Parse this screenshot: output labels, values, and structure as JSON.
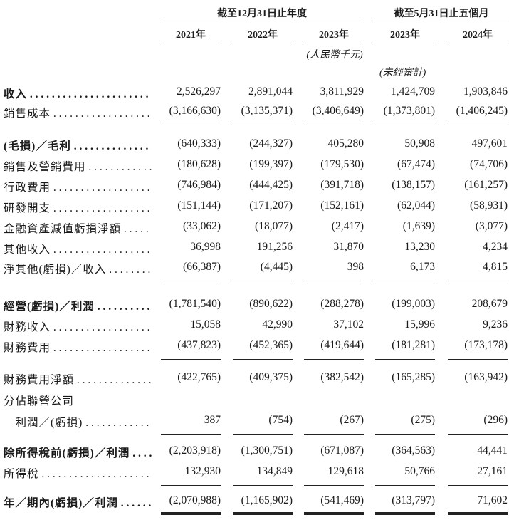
{
  "header": {
    "group1": "截至12月31日止年度",
    "group2": "截至5月31日止五個月",
    "years": [
      "2021年",
      "2022年",
      "2023年",
      "2023年",
      "2024年"
    ],
    "currency_note": "(人民幣千元)",
    "unaudited_note": "(未經審計)"
  },
  "rows": [
    {
      "label": "收入",
      "bold": true,
      "values": [
        "2,526,297",
        "2,891,044",
        "3,811,929",
        "1,424,709",
        "1,903,846"
      ]
    },
    {
      "label": "銷售成本",
      "values": [
        "(3,166,630)",
        "(3,135,371)",
        "(3,406,649)",
        "(1,373,801)",
        "(1,406,245)"
      ],
      "rule": "single"
    },
    {
      "label": "(毛損)／毛利",
      "bold": true,
      "values": [
        "(640,333)",
        "(244,327)",
        "405,280",
        "50,908",
        "497,601"
      ]
    },
    {
      "label": "銷售及營銷費用",
      "values": [
        "(180,628)",
        "(199,397)",
        "(179,530)",
        "(67,474)",
        "(74,706)"
      ]
    },
    {
      "label": "行政費用",
      "values": [
        "(746,984)",
        "(444,425)",
        "(391,718)",
        "(138,157)",
        "(161,257)"
      ]
    },
    {
      "label": "研發開支",
      "values": [
        "(151,144)",
        "(171,207)",
        "(152,161)",
        "(62,044)",
        "(58,931)"
      ]
    },
    {
      "label": "金融資產減值虧損淨額",
      "values": [
        "(33,062)",
        "(18,077)",
        "(2,417)",
        "(1,639)",
        "(3,077)"
      ]
    },
    {
      "label": "其他收入",
      "values": [
        "36,998",
        "191,256",
        "31,870",
        "13,230",
        "4,234"
      ]
    },
    {
      "label": "淨其他(虧損)／收入",
      "values": [
        "(66,387)",
        "(4,445)",
        "398",
        "6,173",
        "4,815"
      ],
      "rule": "single"
    },
    {
      "label": "經營(虧損)／利潤",
      "bold": true,
      "values": [
        "(1,781,540)",
        "(890,622)",
        "(288,278)",
        "(199,003)",
        "208,679"
      ]
    },
    {
      "label": "財務收入",
      "values": [
        "15,058",
        "42,990",
        "37,102",
        "15,996",
        "9,236"
      ]
    },
    {
      "label": "財務費用",
      "values": [
        "(437,823)",
        "(452,365)",
        "(419,644)",
        "(181,281)",
        "(173,178)"
      ],
      "rule": "single"
    },
    {
      "label": "財務費用淨額",
      "values": [
        "(422,765)",
        "(409,375)",
        "(382,542)",
        "(165,285)",
        "(163,942)"
      ]
    },
    {
      "label": "分佔聯營公司",
      "noleader": true,
      "values": []
    },
    {
      "label": "　利潤／(虧損)",
      "values": [
        "387",
        "(754)",
        "(267)",
        "(275)",
        "(296)"
      ],
      "rule": "single"
    },
    {
      "label": "除所得稅前(虧損)／利潤",
      "bold": true,
      "values": [
        "(2,203,918)",
        "(1,300,751)",
        "(671,087)",
        "(364,563)",
        "44,441"
      ]
    },
    {
      "label": "所得稅",
      "values": [
        "132,930",
        "134,849",
        "129,618",
        "50,766",
        "27,161"
      ],
      "rule": "single"
    },
    {
      "label": "年／期內(虧損)／利潤",
      "bold": true,
      "values": [
        "(2,070,988)",
        "(1,165,902)",
        "(541,469)",
        "(313,797)",
        "71,602"
      ],
      "rule": "double"
    }
  ]
}
